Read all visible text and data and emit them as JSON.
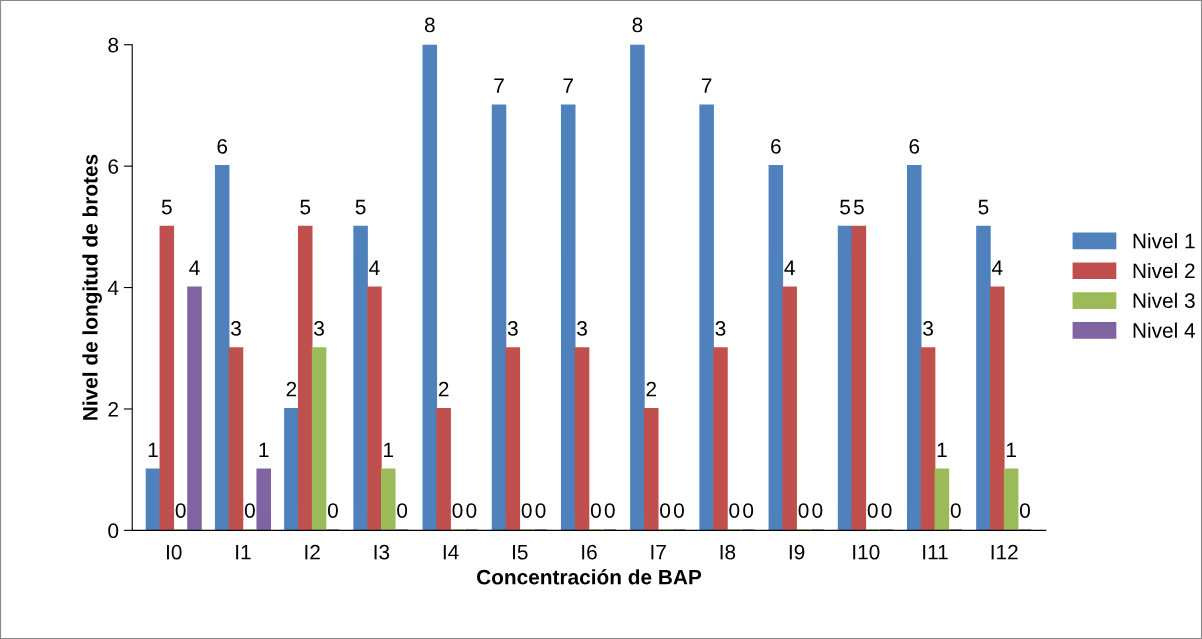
{
  "chart_data": {
    "type": "bar",
    "xlabel": "Concentración de BAP",
    "ylabel": "Nivel de longitud de brotes",
    "categories": [
      "I0",
      "I1",
      "I2",
      "I3",
      "I4",
      "I5",
      "I6",
      "I7",
      "I8",
      "I9",
      "I10",
      "I11",
      "I12"
    ],
    "series": [
      {
        "name": "Nivel 1",
        "color": "#4f81bd",
        "values": [
          1,
          6,
          2,
          5,
          8,
          7,
          7,
          8,
          7,
          6,
          5,
          6,
          5
        ]
      },
      {
        "name": "Nivel 2",
        "color": "#c0504d",
        "values": [
          5,
          3,
          5,
          4,
          2,
          3,
          3,
          2,
          3,
          4,
          5,
          3,
          4
        ]
      },
      {
        "name": "Nivel 3",
        "color": "#9bbb59",
        "values": [
          0,
          0,
          3,
          1,
          0,
          0,
          0,
          0,
          0,
          0,
          0,
          1,
          1
        ]
      },
      {
        "name": "Nivel 4",
        "color": "#8064a2",
        "values": [
          4,
          1,
          0,
          0,
          0,
          0,
          0,
          0,
          0,
          0,
          0,
          0,
          0
        ]
      }
    ],
    "ylim": [
      0,
      8
    ],
    "yticks": [
      0,
      2,
      4,
      6,
      8
    ],
    "grid": false,
    "legend": "right",
    "data_labels": true
  }
}
